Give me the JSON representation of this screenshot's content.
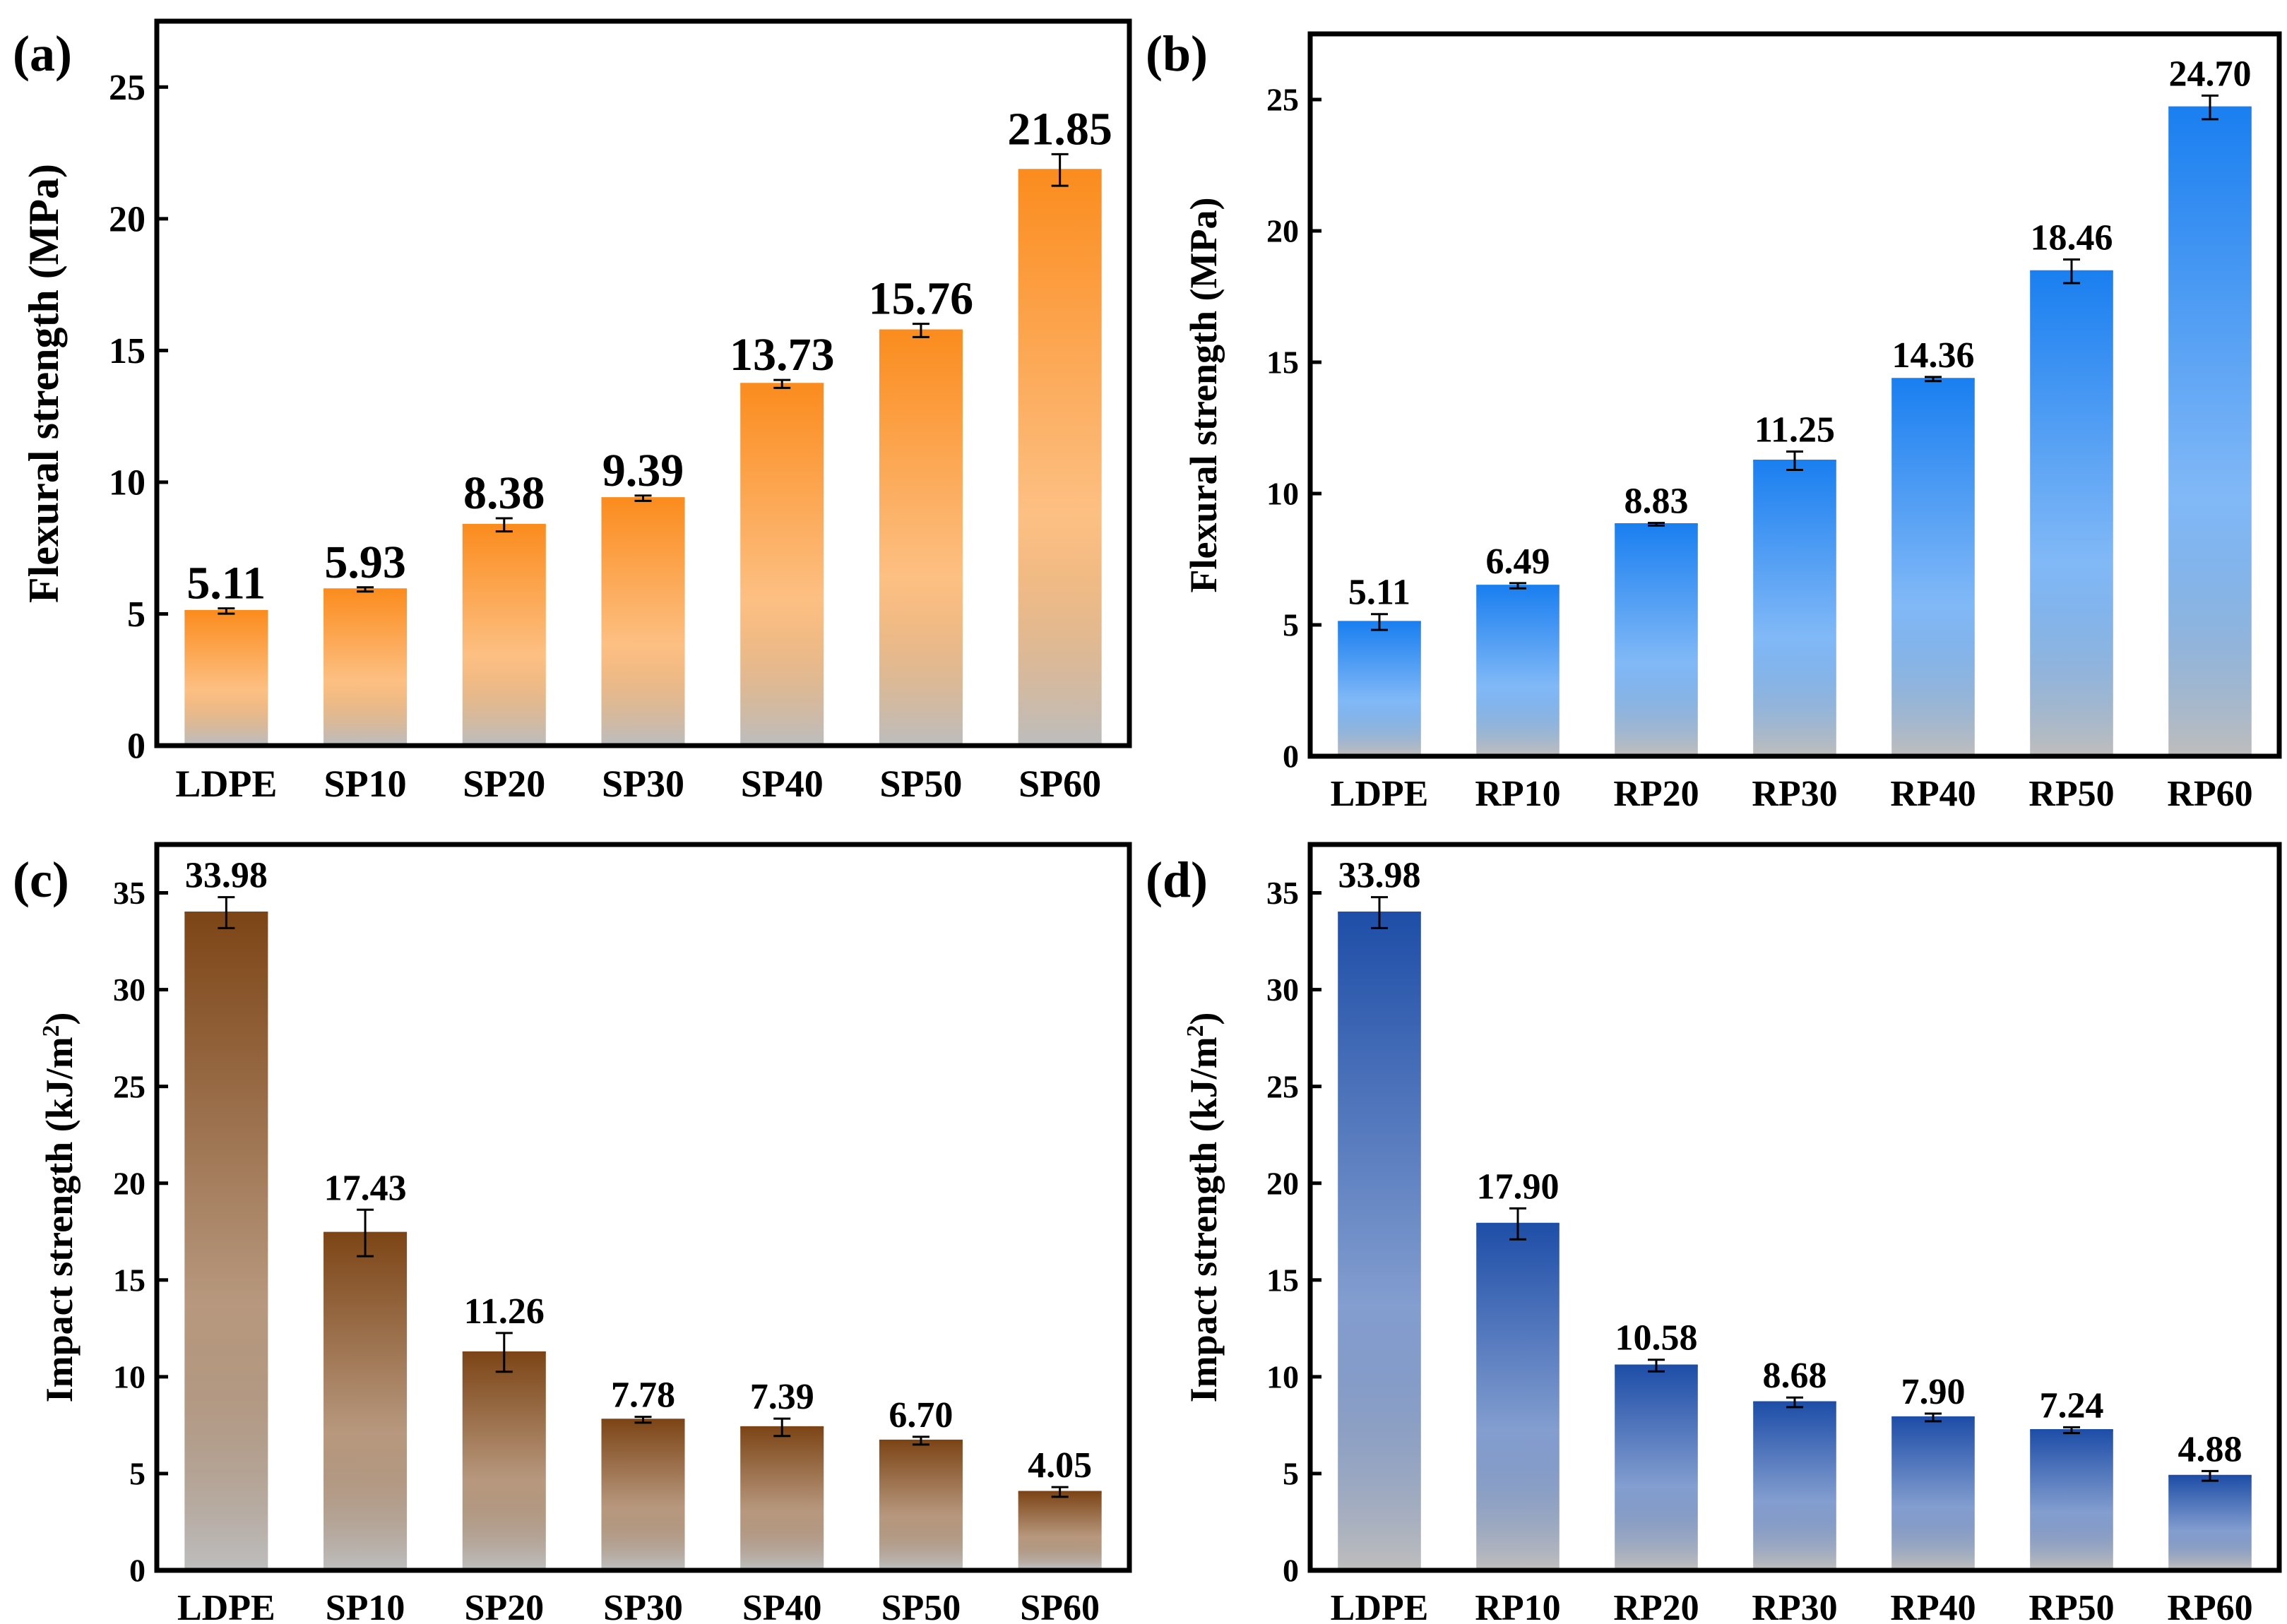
{
  "colors": {
    "orange": "#fb8c1e",
    "brown": "#7d4516",
    "blue_light": "#1a7ff0",
    "blue_dark": "#1e4ea8",
    "base_grey": "#bdbdbd",
    "frame": "#000000"
  },
  "chart_data": [
    {
      "panel": "(a)",
      "type": "bar",
      "categories": [
        "LDPE",
        "SP10",
        "SP20",
        "SP30",
        "SP40",
        "SP50",
        "SP60"
      ],
      "values": [
        5.11,
        5.93,
        8.38,
        9.39,
        13.73,
        15.76,
        21.85
      ],
      "labels": [
        "5.11",
        "5.93",
        "8.38",
        "9.39",
        "13.73",
        "15.76",
        "21.85"
      ],
      "errors": [
        0.1,
        0.08,
        0.25,
        0.1,
        0.15,
        0.25,
        0.6
      ],
      "ylabel": "Flexural strength (MPa)",
      "ylim": [
        0,
        27.5
      ],
      "yticks": [
        "0",
        "5",
        "10",
        "15",
        "20",
        "25"
      ],
      "color": "#fb8c1e"
    },
    {
      "panel": "(b)",
      "type": "bar",
      "categories": [
        "LDPE",
        "RP10",
        "RP20",
        "RP30",
        "RP40",
        "RP50",
        "RP60"
      ],
      "values": [
        5.11,
        6.49,
        8.83,
        11.25,
        14.36,
        18.46,
        24.7
      ],
      "labels": [
        "5.11",
        "6.49",
        "8.83",
        "11.25",
        "14.36",
        "18.46",
        "24.70"
      ],
      "errors": [
        0.3,
        0.1,
        0.05,
        0.35,
        0.08,
        0.45,
        0.45
      ],
      "ylabel": "Flexural strength (MPa)",
      "ylim": [
        0,
        27.5
      ],
      "yticks": [
        "0",
        "5",
        "10",
        "15",
        "20",
        "25"
      ],
      "color": "#1a7ff0"
    },
    {
      "panel": "(c)",
      "type": "bar",
      "categories": [
        "LDPE",
        "SP10",
        "SP20",
        "SP30",
        "SP40",
        "SP50",
        "SP60"
      ],
      "values": [
        33.98,
        17.43,
        11.26,
        7.78,
        7.39,
        6.7,
        4.05
      ],
      "labels": [
        "33.98",
        "17.43",
        "11.26",
        "7.78",
        "7.39",
        "6.70",
        "4.05"
      ],
      "errors": [
        0.8,
        1.2,
        1.0,
        0.15,
        0.45,
        0.2,
        0.25
      ],
      "ylabel": "Impact strength (kJ/m",
      "ylabel_sup": "2",
      "ylabel_end": ")",
      "ylim": [
        0,
        37.5
      ],
      "yticks": [
        "0",
        "5",
        "10",
        "15",
        "20",
        "25",
        "30",
        "35"
      ],
      "color": "#7d4516"
    },
    {
      "panel": "(d)",
      "type": "bar",
      "categories": [
        "LDPE",
        "RP10",
        "RP20",
        "RP30",
        "RP40",
        "RP50",
        "RP60"
      ],
      "values": [
        33.98,
        17.9,
        10.58,
        8.68,
        7.9,
        7.24,
        4.88
      ],
      "labels": [
        "33.98",
        "17.90",
        "10.58",
        "8.68",
        "7.90",
        "7.24",
        "4.88"
      ],
      "errors": [
        0.8,
        0.8,
        0.3,
        0.25,
        0.2,
        0.15,
        0.25
      ],
      "ylabel": "Impact strength (kJ/m",
      "ylabel_sup": "2",
      "ylabel_end": ")",
      "ylim": [
        0,
        37.5
      ],
      "yticks": [
        "0",
        "5",
        "10",
        "15",
        "20",
        "25",
        "30",
        "35"
      ],
      "color": "#1e4ea8"
    }
  ]
}
